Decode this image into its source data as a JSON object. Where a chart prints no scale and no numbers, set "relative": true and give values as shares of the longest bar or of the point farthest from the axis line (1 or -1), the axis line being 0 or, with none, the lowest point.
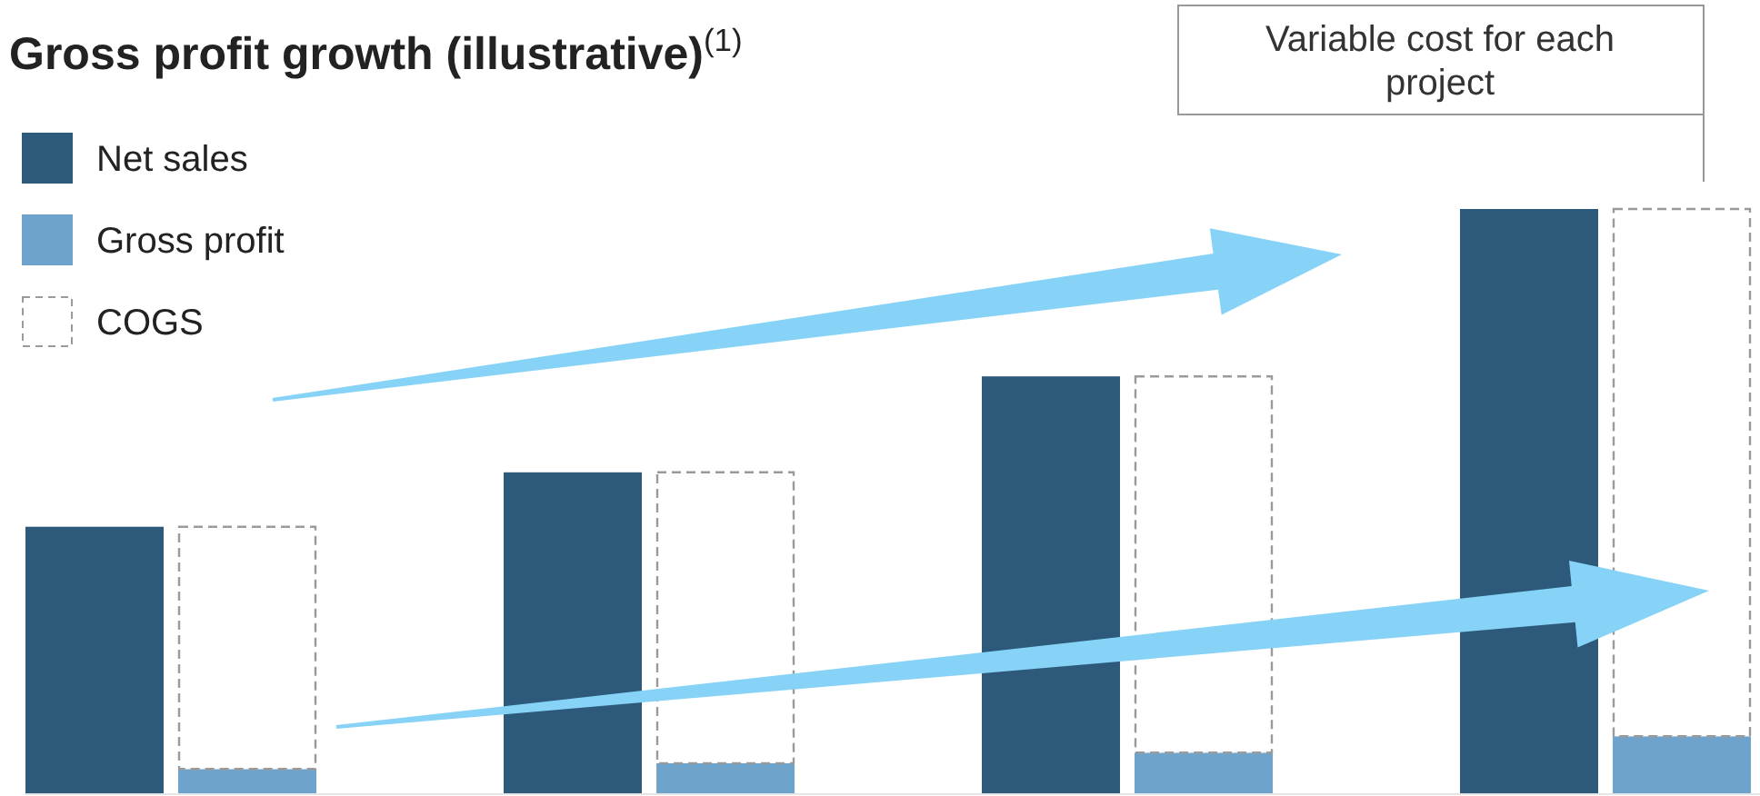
{
  "chart_data": {
    "type": "bar",
    "title": "Gross profit growth (illustrative)$^{(1)}$",
    "relative": true,
    "stacked": true,
    "categories": [
      null,
      null,
      null,
      null,
      null,
      null,
      null,
      null
    ],
    "series": [
      {
        "name": "Net sales",
        "color": "#2d5a7b",
        "values": [
          0.457,
          null,
          0.55,
          null,
          0.714,
          null,
          1,
          null
        ]
      },
      {
        "name": "Gross profit",
        "color": "#6ea3cb",
        "values": [
          null,
          0.043,
          null,
          0.053,
          null,
          0.071,
          null,
          0.099
        ]
      },
      {
        "name": "COGS",
        "color": "#9a9a9a",
        "line_style": "dashed",
        "values": [
          null,
          0.414,
          null,
          0.497,
          null,
          0.643,
          null,
          0.901
        ]
      }
    ],
    "legend": "top left",
    "annotations": [
      "Variable cost for each project"
    ]
  }
}
